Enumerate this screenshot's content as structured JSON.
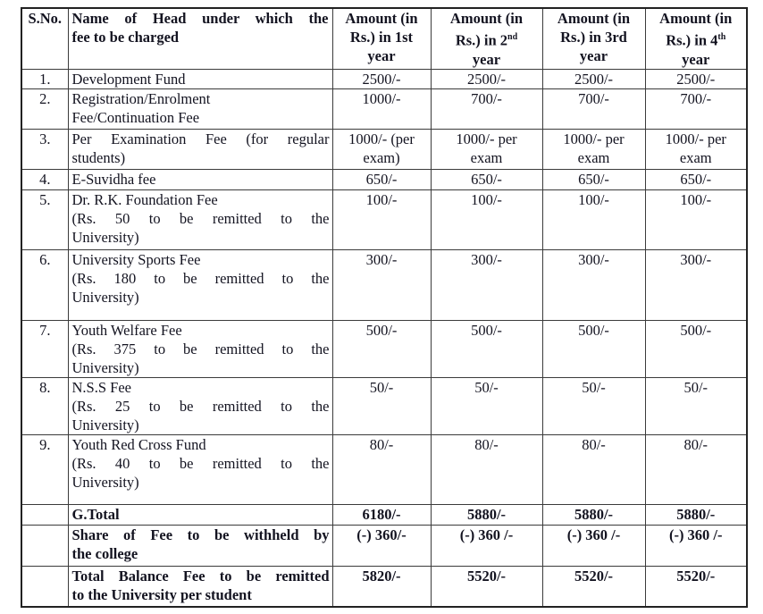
{
  "document": {
    "kind": "fee-structure-table"
  },
  "colors": {
    "background": "#ffffff",
    "text": "#131320",
    "border": "#3b3b3b",
    "outer_border": "#222222"
  },
  "table": {
    "header": {
      "sno": "S.No.",
      "name_paragraphs": [
        [
          "Name of Head under which the",
          "fee to be charged"
        ]
      ],
      "amount_cols": [
        {
          "lines": [
            {
              "t": "Amount (in"
            },
            {
              "t": "Rs.) in 1st"
            },
            {
              "t": "year"
            }
          ]
        },
        {
          "lines": [
            {
              "t": "Amount (in"
            },
            {
              "t": "Rs.) in 2",
              "sup": "nd"
            },
            {
              "t": "year"
            }
          ]
        },
        {
          "lines": [
            {
              "t": "Amount (in"
            },
            {
              "t": "Rs.) in 3rd"
            },
            {
              "t": "year"
            }
          ]
        },
        {
          "lines": [
            {
              "t": "Amount (in"
            },
            {
              "t": "Rs.) in 4",
              "sup": "th"
            },
            {
              "t": "year"
            }
          ]
        }
      ]
    },
    "rows": [
      {
        "sno": "1.",
        "name": [
          [
            "Development Fund"
          ]
        ],
        "amounts": [
          [
            "2500/-"
          ],
          [
            "2500/-"
          ],
          [
            "2500/-"
          ],
          [
            "2500/-"
          ]
        ]
      },
      {
        "sno": "2.",
        "name": [
          [
            "Registration/Enrolment"
          ],
          [
            "Fee/Continuation Fee"
          ]
        ],
        "amounts": [
          [
            "1000/-"
          ],
          [
            "700/-"
          ],
          [
            "700/-"
          ],
          [
            "700/-"
          ]
        ]
      },
      {
        "sno": "3.",
        "name": [
          [
            "Per Examination Fee (for regular",
            "students)"
          ]
        ],
        "amounts": [
          [
            "1000/- (per",
            "exam)"
          ],
          [
            "1000/- per",
            "exam"
          ],
          [
            "1000/- per",
            "exam"
          ],
          [
            "1000/- per",
            "exam"
          ]
        ]
      },
      {
        "sno": "4.",
        "name": [
          [
            "E-Suvidha fee"
          ]
        ],
        "amounts": [
          [
            "650/-"
          ],
          [
            "650/-"
          ],
          [
            "650/-"
          ],
          [
            "650/-"
          ]
        ]
      },
      {
        "sno": "5.",
        "name": [
          [
            "Dr. R.K. Foundation Fee"
          ],
          [
            "(Rs. 50 to be remitted to the",
            "University)"
          ]
        ],
        "amounts": [
          [
            "100/-"
          ],
          [
            "100/-"
          ],
          [
            "100/-"
          ],
          [
            "100/-"
          ]
        ]
      },
      {
        "sno": "6.",
        "name": [
          [
            "University Sports Fee"
          ],
          [
            "(Rs. 180 to be remitted to the",
            "University)"
          ]
        ],
        "amounts": [
          [
            "300/-"
          ],
          [
            "300/-"
          ],
          [
            "300/-"
          ],
          [
            "300/-"
          ]
        ]
      },
      {
        "sno": "7.",
        "name": [
          [
            "Youth Welfare Fee"
          ],
          [
            "(Rs. 375 to be remitted to the",
            "University)"
          ]
        ],
        "amounts": [
          [
            "500/-"
          ],
          [
            "500/-"
          ],
          [
            "500/-"
          ],
          [
            "500/-"
          ]
        ]
      },
      {
        "sno": "8.",
        "name": [
          [
            "N.S.S Fee"
          ],
          [
            "(Rs. 25 to be remitted to the",
            "University)"
          ]
        ],
        "amounts": [
          [
            "50/-"
          ],
          [
            "50/-"
          ],
          [
            "50/-"
          ],
          [
            "50/-"
          ]
        ]
      },
      {
        "sno": "9.",
        "name": [
          [
            "Youth Red Cross Fund"
          ],
          [
            "(Rs. 40 to be remitted to the",
            "University)"
          ]
        ],
        "amounts": [
          [
            "80/-"
          ],
          [
            "80/-"
          ],
          [
            "80/-"
          ],
          [
            "80/-"
          ]
        ]
      },
      {
        "sno": "",
        "is_total": true,
        "name": [
          [
            "G.Total"
          ]
        ],
        "amounts": [
          [
            "6180/-"
          ],
          [
            "5880/-"
          ],
          [
            "5880/-"
          ],
          [
            "5880/-"
          ]
        ]
      },
      {
        "sno": "",
        "is_total": true,
        "name": [
          [
            "Share of Fee to be withheld by",
            "the college"
          ]
        ],
        "amounts": [
          [
            "(-) 360/-"
          ],
          [
            "(-) 360 /-"
          ],
          [
            "(-) 360 /-"
          ],
          [
            "(-) 360 /-"
          ]
        ]
      },
      {
        "sno": "",
        "is_total": true,
        "name": [
          [
            "Total Balance Fee to be remitted",
            "to the University per student"
          ]
        ],
        "amounts": [
          [
            "5820/-"
          ],
          [
            "5520/-"
          ],
          [
            "5520/-"
          ],
          [
            "5520/-"
          ]
        ]
      }
    ]
  }
}
